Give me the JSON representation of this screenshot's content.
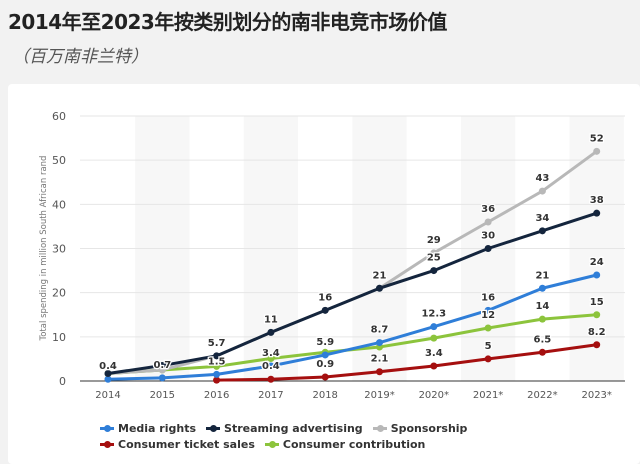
{
  "header": {
    "title": "2014年至2023年按类别划分的南非电竞市场价值",
    "subtitle": "（百万南非兰特）"
  },
  "chart_data": {
    "type": "line",
    "title": "2014年至2023年按类别划分的南非电竞市场价值",
    "subtitle": "（百万南非兰特）",
    "xlabel": "",
    "ylabel": "Total spending in million South African rand",
    "categories": [
      "2014",
      "2015",
      "2016",
      "2017",
      "2018",
      "2019*",
      "2020*",
      "2021*",
      "2022*",
      "2023*"
    ],
    "ylim": [
      0,
      60
    ],
    "yticks": [
      0,
      10,
      20,
      30,
      40,
      50,
      60
    ],
    "grid": true,
    "legend": "bottom",
    "series": [
      {
        "name": "Sponsorship",
        "color": "#b8b8b8",
        "values": [
          1.7,
          2.5,
          5.7,
          11,
          16,
          21,
          29,
          36,
          43,
          52
        ],
        "labels": [
          null,
          null,
          "5.7",
          "11",
          "16",
          "21",
          "29",
          "36",
          "43",
          "52"
        ]
      },
      {
        "name": "Streaming advertising",
        "color": "#14253d",
        "values": [
          1.7,
          3.5,
          5.7,
          11,
          16,
          21,
          25,
          30,
          34,
          38
        ],
        "labels": [
          null,
          null,
          null,
          null,
          null,
          null,
          "25",
          "30",
          "34",
          "38"
        ]
      },
      {
        "name": "Media rights",
        "color": "#2f7ed8",
        "values": [
          0.4,
          0.7,
          1.5,
          3.4,
          5.9,
          8.7,
          12.3,
          16,
          21,
          24
        ],
        "labels": [
          "0.4",
          "0.7",
          "1.5",
          "3.4",
          "5.9",
          "8.7",
          "12.3",
          "16",
          "21",
          "24"
        ]
      },
      {
        "name": "Consumer contribution",
        "color": "#8cc43c",
        "values": [
          1.7,
          2.5,
          3.3,
          5.1,
          6.5,
          7.7,
          9.7,
          12,
          14,
          15
        ],
        "labels": [
          null,
          null,
          null,
          null,
          null,
          null,
          null,
          "12",
          "14",
          "15"
        ]
      },
      {
        "name": "Consumer ticket sales",
        "color": "#a50f0f",
        "values": [
          null,
          null,
          0.2,
          0.4,
          0.9,
          2.1,
          3.4,
          5,
          6.5,
          8.2
        ],
        "labels": [
          null,
          null,
          null,
          "0.4",
          "0.9",
          "2.1",
          "3.4",
          "5",
          "6.5",
          "8.2"
        ]
      }
    ],
    "legend_order": [
      "Media rights",
      "Streaming advertising",
      "Sponsorship",
      "Consumer ticket sales",
      "Consumer contribution"
    ]
  }
}
